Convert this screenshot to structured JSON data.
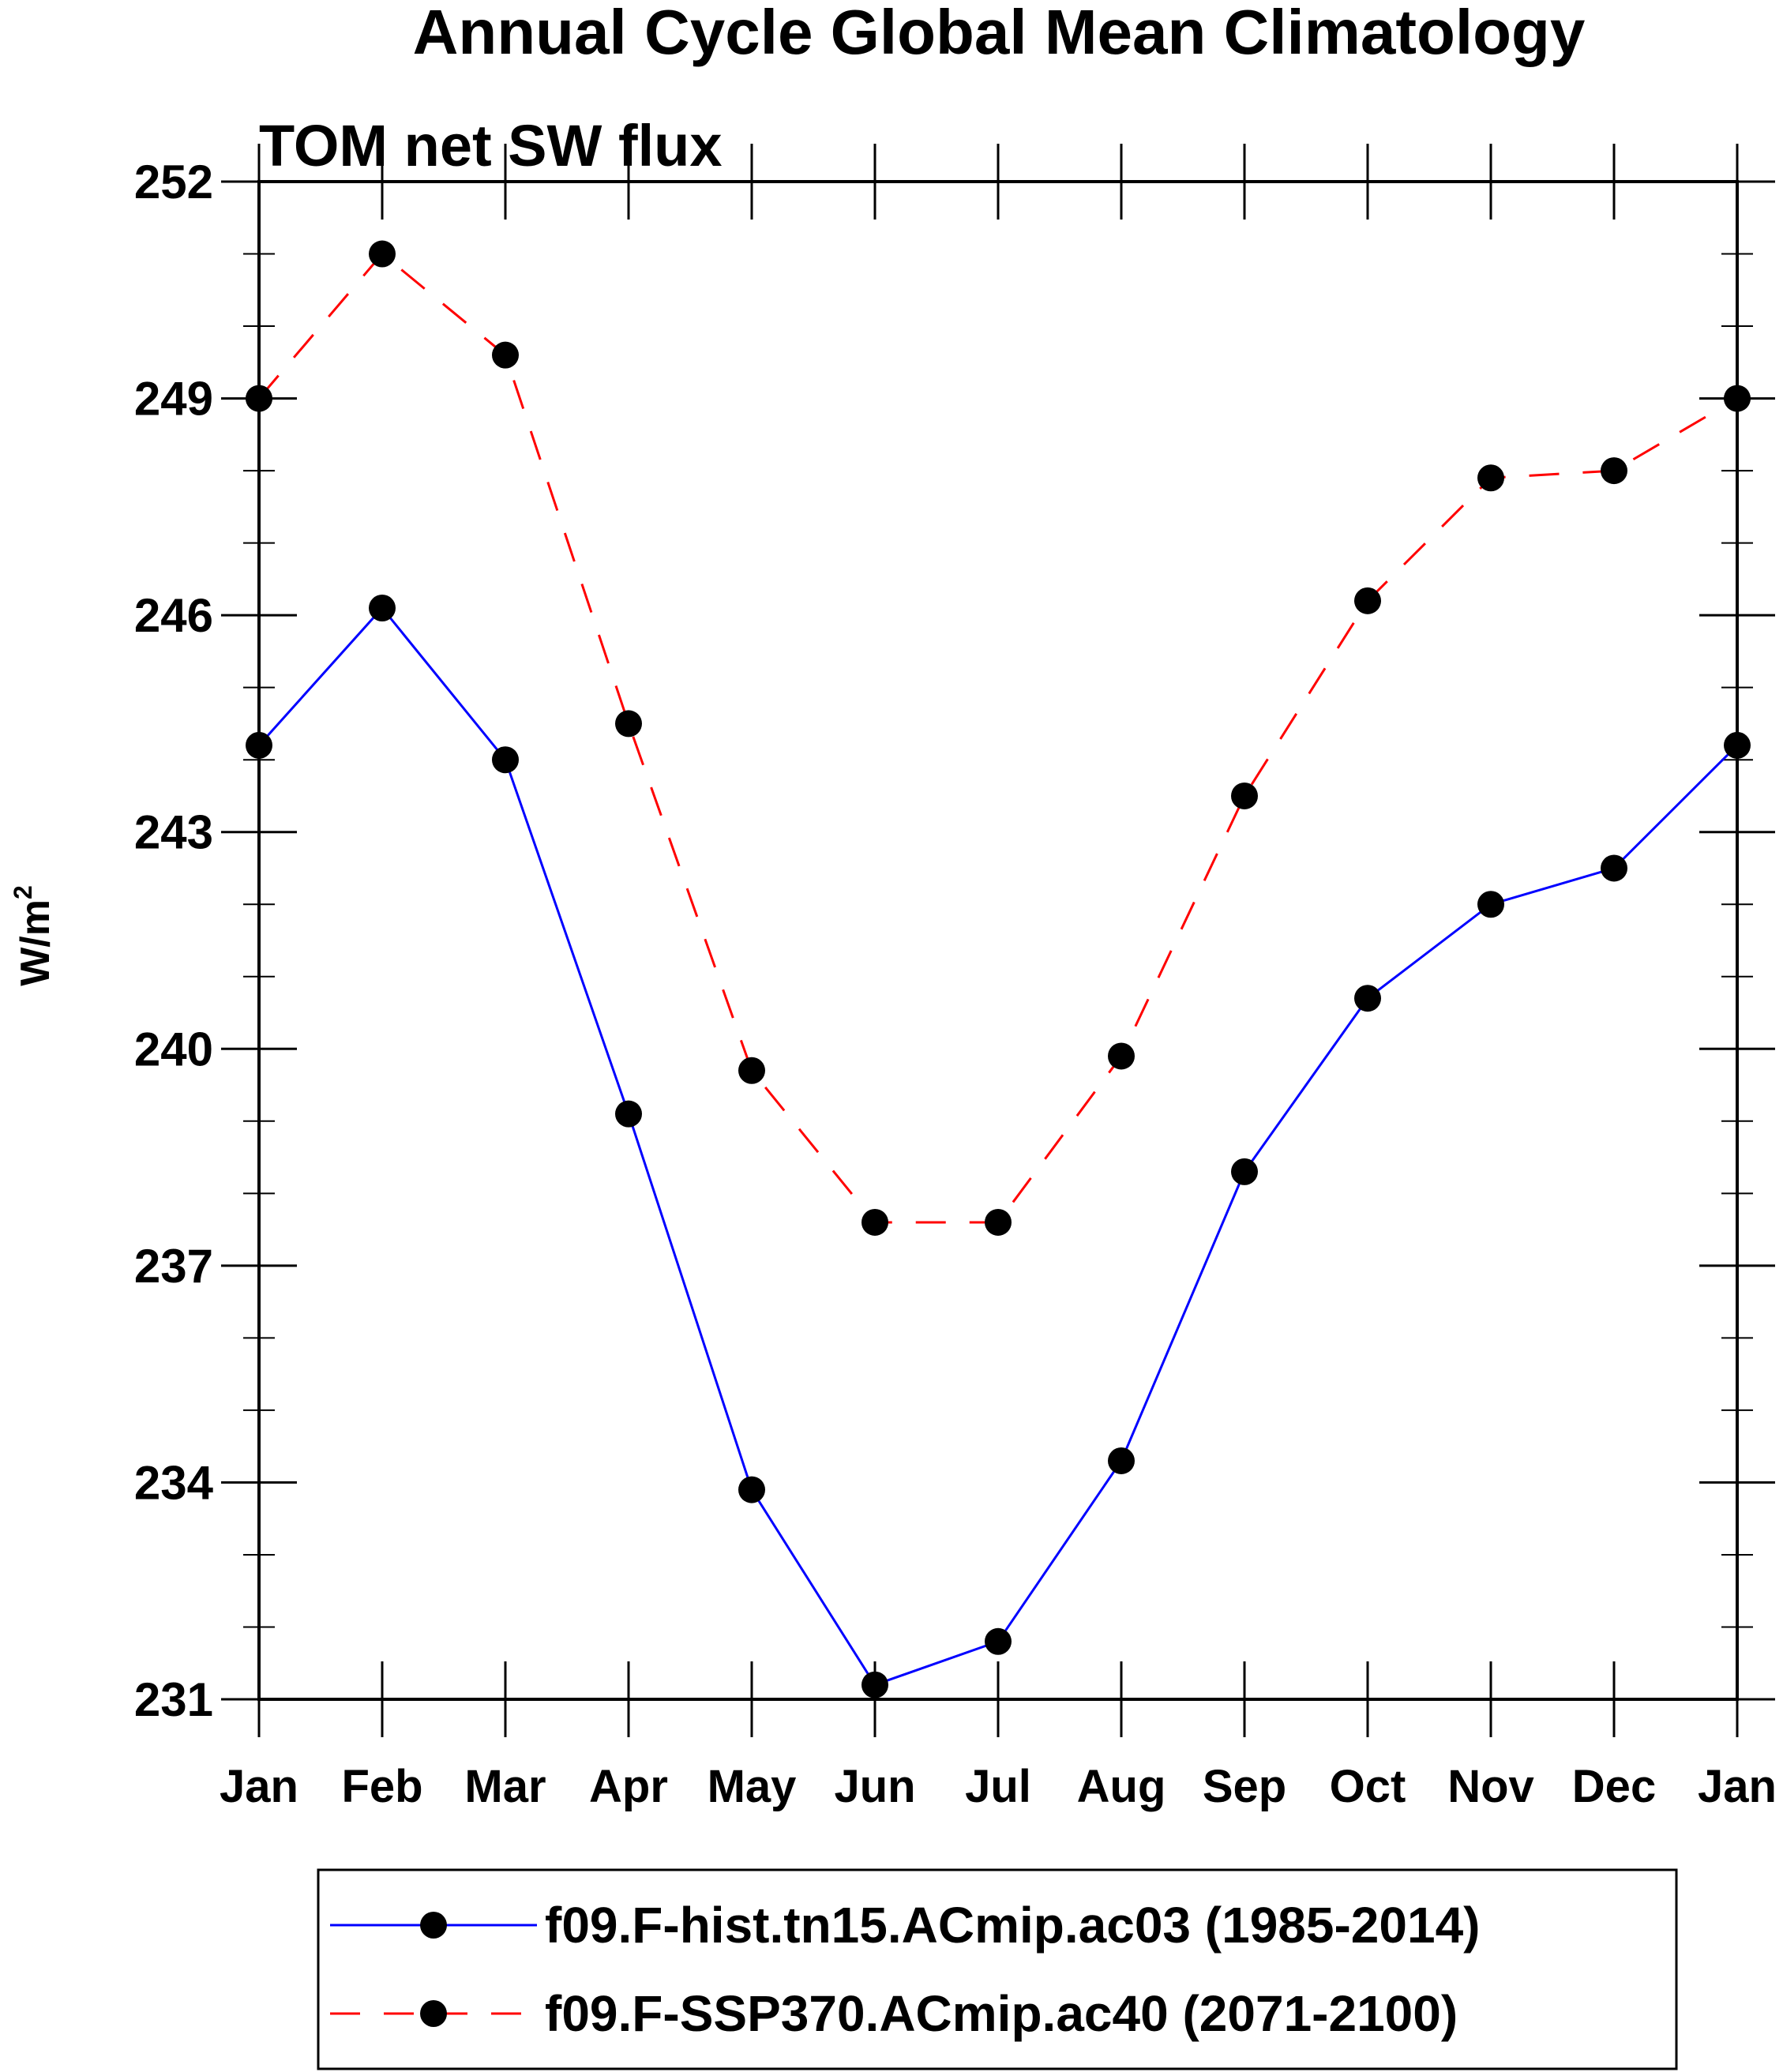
{
  "chart_data": {
    "type": "line",
    "title": "Annual Cycle Global Mean Climatology",
    "subtitle": "TOM net SW flux",
    "ylabel": "W/m",
    "ylabel_superscript": "2",
    "xlabel": "",
    "ylim": [
      231,
      252
    ],
    "yticks": [
      "231",
      "234",
      "237",
      "240",
      "243",
      "246",
      "249",
      "252"
    ],
    "categories": [
      "Jan",
      "Feb",
      "Mar",
      "Apr",
      "May",
      "Jun",
      "Jul",
      "Aug",
      "Sep",
      "Oct",
      "Nov",
      "Dec",
      "Jan"
    ],
    "series": [
      {
        "name": "f09.F-hist.tn15.ACmip.ac03 (1985-2014)",
        "color": "#0000ff",
        "dash": "solid",
        "values": [
          244.2,
          246.1,
          244.0,
          239.1,
          233.9,
          231.2,
          231.8,
          234.3,
          238.3,
          240.7,
          242.0,
          242.5,
          244.2
        ]
      },
      {
        "name": "f09.F-SSP370.ACmip.ac40 (2071-2100)",
        "color": "#ff0000",
        "dash": "dashed",
        "values": [
          249.0,
          251.0,
          249.6,
          244.5,
          239.7,
          237.6,
          237.6,
          239.9,
          243.5,
          246.2,
          247.9,
          248.0,
          249.0
        ]
      }
    ],
    "legend": "bottom"
  }
}
